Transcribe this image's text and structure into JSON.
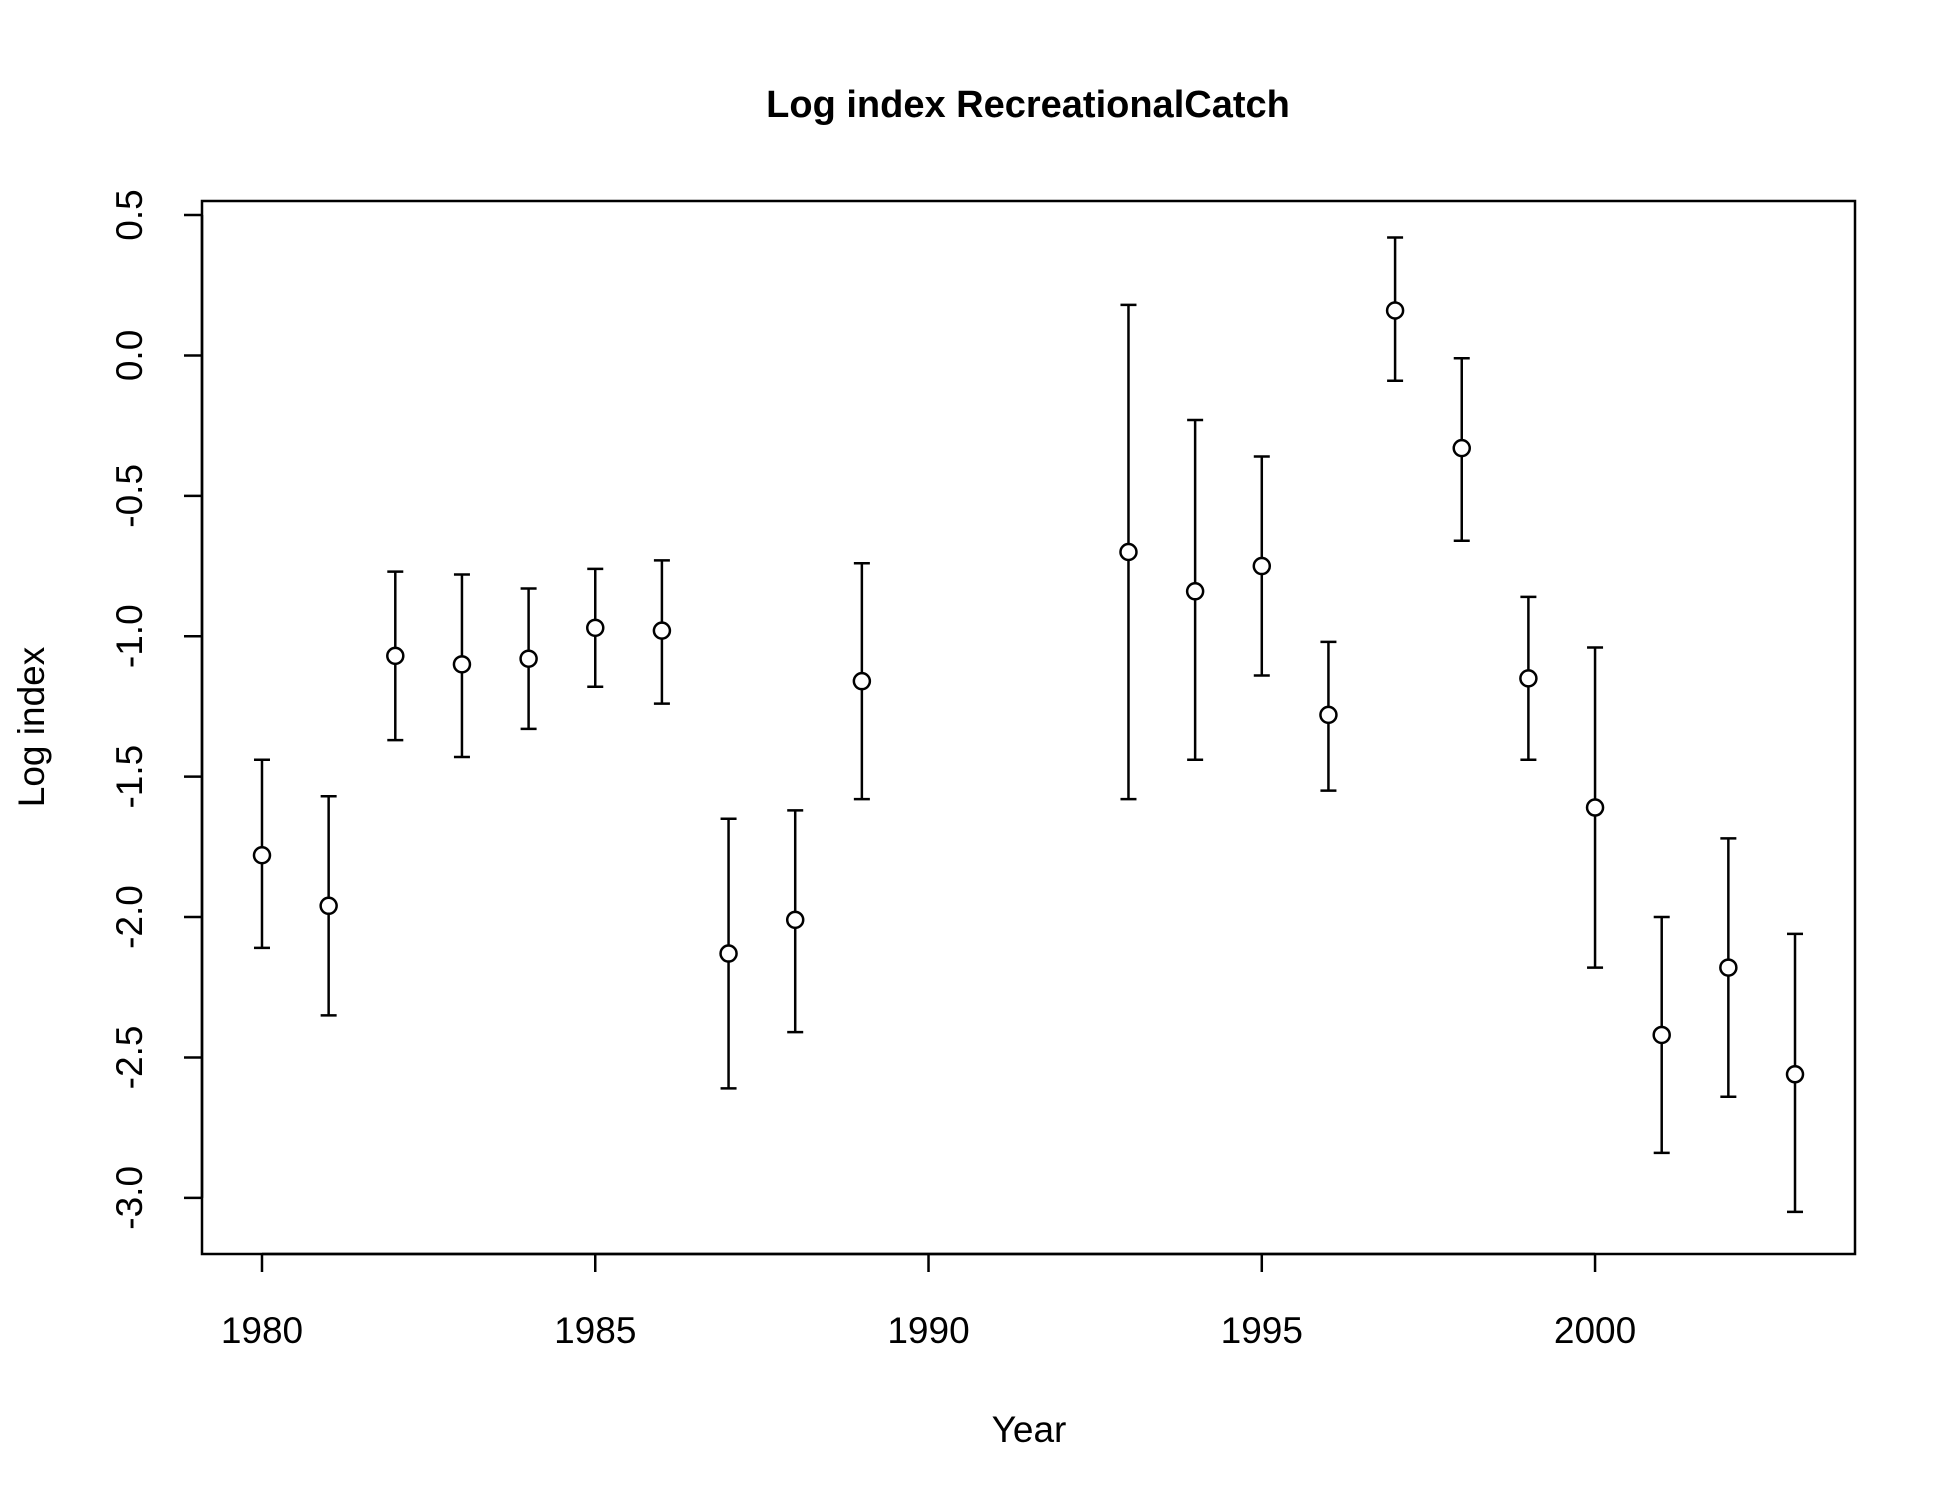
{
  "chart_data": {
    "type": "scatter",
    "title": "Log index RecreationalCatch",
    "xlabel": "Year",
    "ylabel": "Log index",
    "xlim": [
      1979.1,
      2003.9
    ],
    "ylim": [
      -3.2,
      0.55
    ],
    "x_ticks": [
      "1980",
      "1985",
      "1990",
      "1995",
      "2000"
    ],
    "y_ticks": [
      "0.5",
      "0.0",
      "-0.5",
      "-1.0",
      "-1.5",
      "-2.0",
      "-2.5",
      "-3.0"
    ],
    "grid": false,
    "legend": "none",
    "series": [
      {
        "marker": "open-circle",
        "error_bars": true,
        "points": [
          {
            "x": 1980,
            "y": -1.78,
            "lo": -2.11,
            "hi": -1.44
          },
          {
            "x": 1981,
            "y": -1.96,
            "lo": -2.35,
            "hi": -1.57
          },
          {
            "x": 1982,
            "y": -1.07,
            "lo": -1.37,
            "hi": -0.77
          },
          {
            "x": 1983,
            "y": -1.1,
            "lo": -1.43,
            "hi": -0.78
          },
          {
            "x": 1984,
            "y": -1.08,
            "lo": -1.33,
            "hi": -0.83
          },
          {
            "x": 1985,
            "y": -0.97,
            "lo": -1.18,
            "hi": -0.76
          },
          {
            "x": 1986,
            "y": -0.98,
            "lo": -1.24,
            "hi": -0.73
          },
          {
            "x": 1987,
            "y": -2.13,
            "lo": -2.61,
            "hi": -1.65
          },
          {
            "x": 1988,
            "y": -2.01,
            "lo": -2.41,
            "hi": -1.62
          },
          {
            "x": 1989,
            "y": -1.16,
            "lo": -1.58,
            "hi": -0.74
          },
          {
            "x": 1993,
            "y": -0.7,
            "lo": -1.58,
            "hi": 0.18
          },
          {
            "x": 1994,
            "y": -0.84,
            "lo": -1.44,
            "hi": -0.23
          },
          {
            "x": 1995,
            "y": -0.75,
            "lo": -1.14,
            "hi": -0.36
          },
          {
            "x": 1996,
            "y": -1.28,
            "lo": -1.55,
            "hi": -1.02
          },
          {
            "x": 1997,
            "y": 0.16,
            "lo": -0.09,
            "hi": 0.42
          },
          {
            "x": 1998,
            "y": -0.33,
            "lo": -0.66,
            "hi": -0.01
          },
          {
            "x": 1999,
            "y": -1.15,
            "lo": -1.44,
            "hi": -0.86
          },
          {
            "x": 2000,
            "y": -1.61,
            "lo": -2.18,
            "hi": -1.04
          },
          {
            "x": 2001,
            "y": -2.42,
            "lo": -2.84,
            "hi": -2.0
          },
          {
            "x": 2002,
            "y": -2.18,
            "lo": -2.64,
            "hi": -1.72
          },
          {
            "x": 2003,
            "y": -2.56,
            "lo": -3.05,
            "hi": -2.06
          }
        ]
      }
    ]
  }
}
